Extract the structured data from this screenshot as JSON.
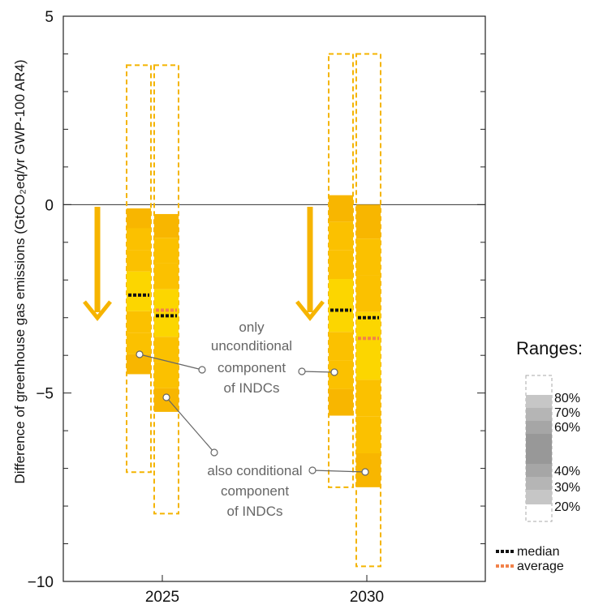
{
  "chart_data": {
    "type": "range-bar",
    "ylabel": "Difference of  greenhouse gas emissions (GtCO₂eq/yr GWP-100 AR4)",
    "ylim": [
      -10,
      5
    ],
    "yticks": [
      5,
      0,
      -5,
      -10
    ],
    "ytick_labels": [
      "5",
      "0",
      "−5",
      "−10"
    ],
    "categories": [
      "2025",
      "2030"
    ],
    "series": [
      {
        "name": "only unconditional component of INDCs",
        "values": [
          {
            "year": "2025",
            "min": -7.1,
            "p20": -4.5,
            "p80": -0.1,
            "max": 3.7,
            "median": -2.4,
            "average": -2.4
          },
          {
            "year": "2030",
            "min": -7.5,
            "p20": -5.6,
            "p80": 0.25,
            "max": 4.0,
            "median": -2.8,
            "average": -2.8
          }
        ]
      },
      {
        "name": "also conditional component of INDCs",
        "values": [
          {
            "year": "2025",
            "min": -8.2,
            "p20": -5.5,
            "p80": -0.25,
            "max": 3.7,
            "median": -2.95,
            "average": -2.8
          },
          {
            "year": "2030",
            "min": -9.6,
            "p20": -7.5,
            "p80": 0.0,
            "max": 4.0,
            "median": -3.0,
            "average": -3.55
          }
        ]
      }
    ],
    "annotations": {
      "unconditional": [
        "only",
        "unconditional",
        "component",
        "of INDCs"
      ],
      "conditional": [
        "also conditional",
        "component",
        "of INDCs"
      ]
    },
    "legend": {
      "title": "Ranges:",
      "percentiles": [
        "80%",
        "70%",
        "60%",
        "40%",
        "30%",
        "20%"
      ],
      "median_label": "median",
      "average_label": "average"
    },
    "colors": {
      "band_outer": "#f8b600",
      "band_mid": "#fbc100",
      "band_inner": "#fcd600",
      "dashed": "#f4b400",
      "arrow": "#f6b400",
      "median": "#111111",
      "average": "#f2824a",
      "annotation": "#666666"
    }
  }
}
